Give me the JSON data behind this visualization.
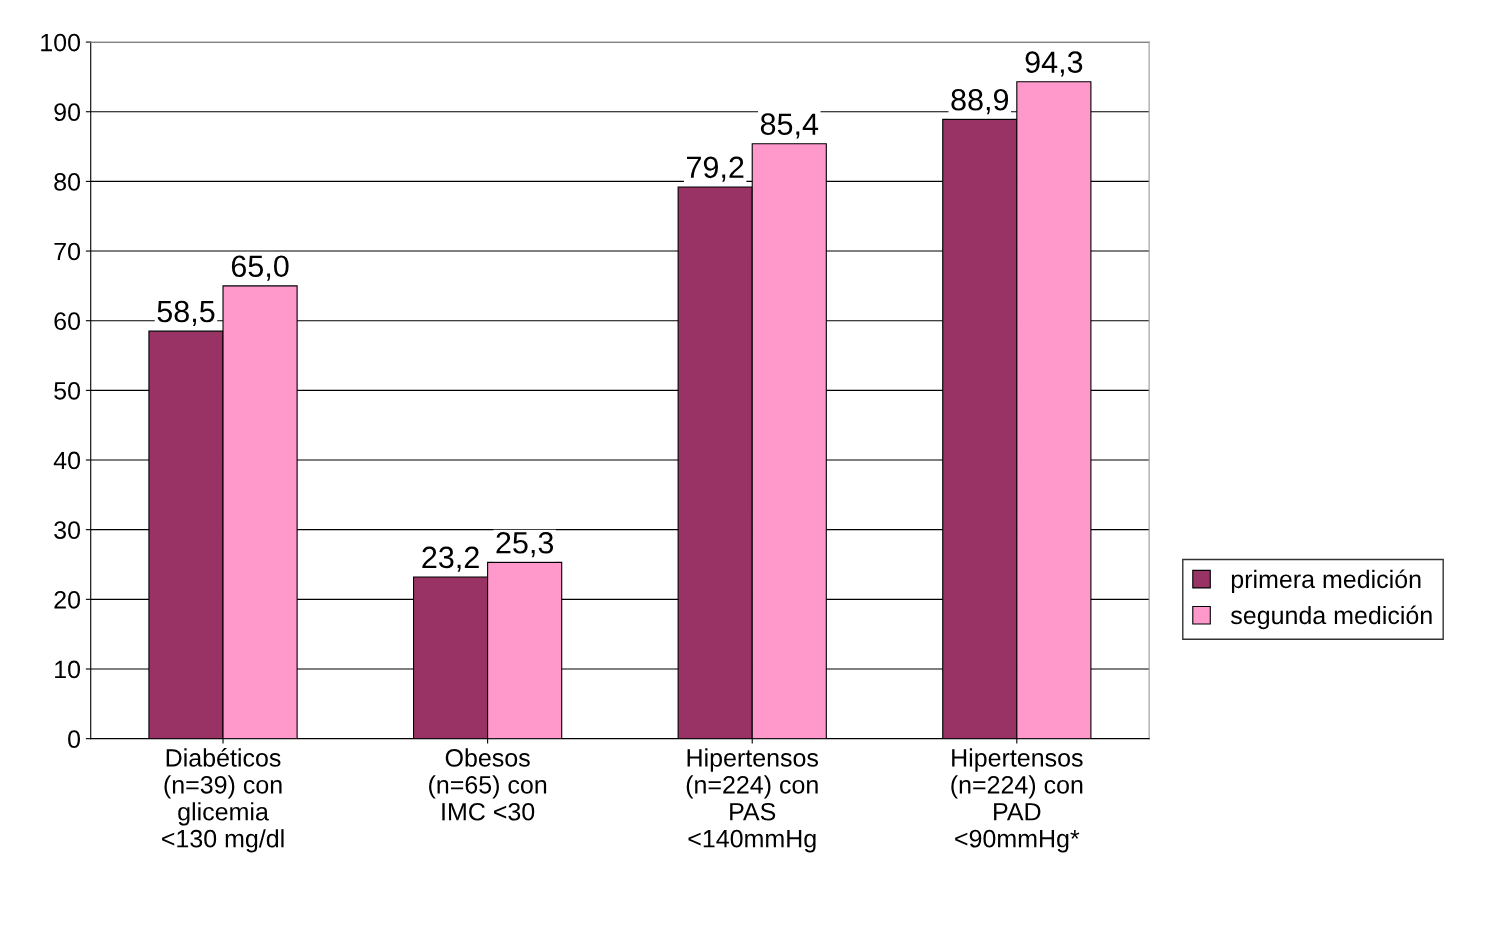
{
  "chart_data": {
    "type": "bar",
    "categories": [
      "Diabéticos\n(n=39) con\nglicemia\n<130 mg/dl",
      "Obesos\n(n=65) con\nIMC <30",
      "Hipertensos\n(n=224) con\nPAS\n<140mmHg",
      "Hipertensos\n(n=224) con\nPAD\n<90mmHg*"
    ],
    "series": [
      {
        "name": "primera medición",
        "color": "#993366",
        "values": [
          58.5,
          23.2,
          79.2,
          88.9
        ],
        "value_labels": [
          "58,5",
          "23,2",
          "79,2",
          "88,9"
        ]
      },
      {
        "name": "segunda medición",
        "color": "#ff99cc",
        "values": [
          65.0,
          25.3,
          85.4,
          94.3
        ],
        "value_labels": [
          "65,0",
          "25,3",
          "85,4",
          "94,3"
        ]
      }
    ],
    "ylim": [
      0,
      100
    ],
    "yticks": [
      0,
      10,
      20,
      30,
      40,
      50,
      60,
      70,
      80,
      90,
      100
    ],
    "grid": "y",
    "legend": "right"
  }
}
